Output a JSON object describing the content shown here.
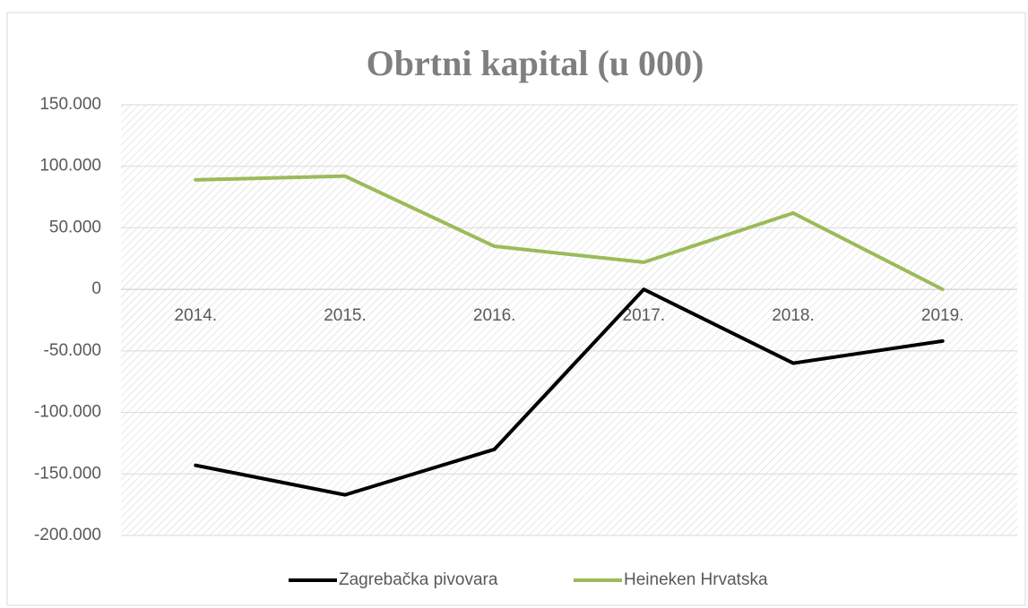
{
  "chart_data": {
    "type": "line",
    "title": "Obrtni kapital (u 000)",
    "categories": [
      "2014.",
      "2015.",
      "2016.",
      "2017.",
      "2018.",
      "2019."
    ],
    "series": [
      {
        "name": "Zagrebačka pivovara",
        "color": "#000000",
        "values": [
          -143000,
          -167000,
          -130000,
          0,
          -60000,
          -42000
        ]
      },
      {
        "name": "Heineken Hrvatska",
        "color": "#9bbb59",
        "values": [
          89000,
          92000,
          35000,
          22000,
          62000,
          0
        ]
      }
    ],
    "ylim": [
      -200000,
      150000
    ],
    "yticks": [
      {
        "value": -200000,
        "label": "-200.000"
      },
      {
        "value": -150000,
        "label": "-150.000"
      },
      {
        "value": -100000,
        "label": "-100.000"
      },
      {
        "value": -50000,
        "label": "-50.000"
      },
      0,
      {
        "value": 50000,
        "label": "50.000"
      },
      {
        "value": 100000,
        "label": "100.000"
      },
      {
        "value": 150000,
        "label": "150.000"
      }
    ],
    "grid": true,
    "legend": "bottom"
  }
}
